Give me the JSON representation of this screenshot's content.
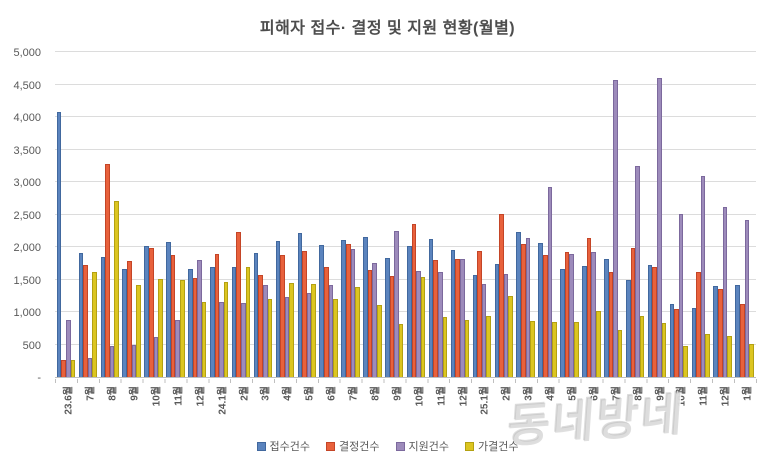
{
  "watermark": "동네방네",
  "chart_data": {
    "type": "bar",
    "title": "피해자 접수· 결정 및 지원 현황(월별)",
    "xlabel": "",
    "ylabel": "",
    "ylim": [
      0,
      5000
    ],
    "y_tick_step": 500,
    "y_tick_labels": [
      "-",
      "500",
      "1,000",
      "1,500",
      "2,000",
      "2,500",
      "3,000",
      "3,500",
      "4,000",
      "4,500",
      "5,000"
    ],
    "grid": true,
    "legend_position": "bottom",
    "categories": [
      "23.6월",
      "7월",
      "8월",
      "9월",
      "10월",
      "11월",
      "12월",
      "24.1월",
      "2월",
      "3월",
      "4월",
      "5월",
      "6월",
      "7월",
      "8월",
      "9월",
      "10월",
      "11월",
      "12월",
      "25.1월",
      "2월",
      "3월",
      "4월",
      "5월",
      "6월",
      "7월",
      "8월",
      "9월",
      "10월",
      "11월",
      "12월",
      "1월"
    ],
    "series": [
      {
        "id": "received-count",
        "name": "접수건수",
        "color": "#5b84be",
        "border": "#41689e",
        "values": [
          4080,
          1910,
          1840,
          1660,
          2010,
          2080,
          1660,
          1700,
          1700,
          1910,
          2100,
          2210,
          2030,
          2110,
          2150,
          1830,
          2020,
          2130,
          1950,
          1570,
          1740,
          2230,
          2060,
          1660,
          1710,
          1820,
          1490,
          1720,
          1120,
          1070,
          1400,
          1410
        ]
      },
      {
        "id": "decision-count",
        "name": "결정건수",
        "color": "#e8613c",
        "border": "#c44527",
        "values": [
          260,
          1730,
          3270,
          1780,
          1990,
          1880,
          1520,
          1890,
          2230,
          1570,
          1880,
          1940,
          1700,
          2040,
          1640,
          1560,
          2350,
          1800,
          1810,
          1940,
          2510,
          2040,
          1880,
          1920,
          2140,
          1610,
          1990,
          1700,
          1040,
          1610,
          1350,
          1130
        ]
      },
      {
        "id": "support-count",
        "name": "지원건수",
        "color": "#9d8bbb",
        "border": "#7c699d",
        "values": [
          880,
          300,
          480,
          500,
          610,
          870,
          1800,
          1160,
          1140,
          1420,
          1230,
          1300,
          1420,
          1970,
          1760,
          2240,
          1630,
          1610,
          1810,
          1430,
          1580,
          2140,
          2920,
          1890,
          1930,
          4570,
          3240,
          4600,
          2510,
          3090,
          2620,
          2420
        ]
      },
      {
        "id": "approved-count",
        "name": "가결건수",
        "color": "#dcc520",
        "border": "#b3a112",
        "values": [
          260,
          1620,
          2710,
          1420,
          1510,
          1490,
          1150,
          1460,
          1700,
          1200,
          1450,
          1430,
          1200,
          1390,
          1110,
          820,
          1540,
          920,
          880,
          940,
          1240,
          860,
          850,
          840,
          1010,
          730,
          940,
          830,
          470,
          660,
          630,
          510
        ]
      }
    ]
  }
}
